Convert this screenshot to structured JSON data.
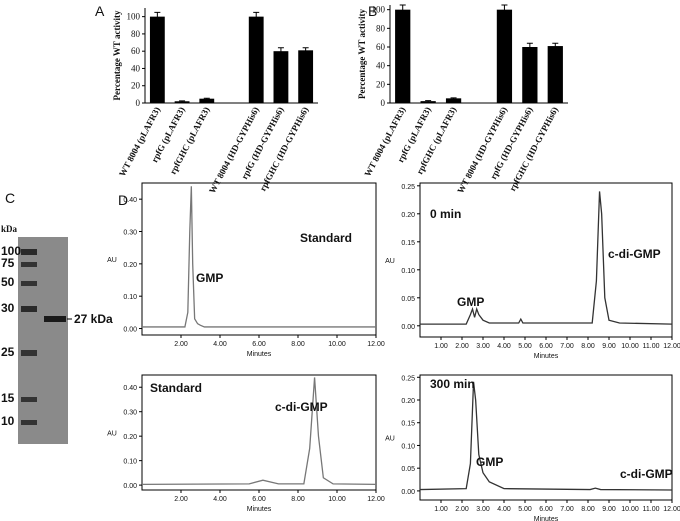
{
  "gel": {
    "panel_label": "C",
    "unit": "kDa",
    "markers": [
      100,
      75,
      50,
      30,
      25,
      15,
      10
    ],
    "band_label": "27 kDa"
  },
  "chart_data": [
    {
      "type": "bar",
      "panel_label": "A",
      "y_label": "Percentage WT activity",
      "categories": [
        "WT 8004 (pLAFR3)",
        "rpfG (pLAFR3)",
        "rpfGHC (pLAFR3)",
        null,
        "WT 8004 (HD-GYPHis6)",
        "rpfG (HD-GYPHis6)",
        "rpfGHC (HD-GYPHis6)"
      ],
      "values": [
        100,
        2,
        5,
        null,
        100,
        60,
        61
      ],
      "errors": [
        5,
        0.5,
        0.5,
        null,
        5,
        4,
        3
      ],
      "color": "#000000",
      "ylim": [
        0,
        110
      ],
      "yticks": [
        0,
        20,
        40,
        60,
        80,
        100
      ]
    },
    {
      "type": "bar",
      "panel_label": "B",
      "y_label": "Percentage WT activity",
      "categories": [
        "WT 8004 (pLAFR3)",
        "rpfG (pLAFR3)",
        "rpfGHC (pLAFR3)",
        null,
        "WT 8004 (HD-GYPHis6)",
        "rpfG (HD-GYPHis6)",
        "rpfGHC (HD-GYPHis6)"
      ],
      "values": [
        100,
        2,
        5,
        null,
        100,
        60,
        61
      ],
      "errors": [
        5,
        0.5,
        0.5,
        null,
        5,
        4,
        3
      ],
      "color": "#000000",
      "ylim": [
        0,
        105
      ],
      "yticks": [
        0,
        20,
        40,
        60,
        80,
        100
      ]
    },
    {
      "type": "line",
      "title": "Standard",
      "annotations": [
        "GMP"
      ],
      "x_label": "Minutes",
      "y_label": "AU",
      "color": "#777777",
      "x": [
        0,
        2.2,
        2.35,
        2.45,
        2.53,
        2.6,
        2.7,
        2.85,
        3.0,
        3.2,
        12
      ],
      "values": [
        0.005,
        0.005,
        0.05,
        0.3,
        0.44,
        0.2,
        0.03,
        0.015,
        0.01,
        0.005,
        0.005
      ],
      "xlim": [
        0,
        12
      ],
      "xticks": [
        {
          "value": 2,
          "label": "2.00"
        },
        {
          "value": 4,
          "label": "4.00"
        },
        {
          "value": 6,
          "label": "6.00"
        },
        {
          "value": 8,
          "label": "8.00"
        },
        {
          "value": 10,
          "label": "10.00"
        },
        {
          "value": 12,
          "label": "12.00"
        }
      ],
      "ylim": [
        -0.02,
        0.45
      ],
      "yticks": [
        {
          "value": 0,
          "label": "0.00"
        },
        {
          "value": 0.1,
          "label": "0.10"
        },
        {
          "value": 0.2,
          "label": "0.20"
        },
        {
          "value": 0.3,
          "label": "0.30"
        },
        {
          "value": 0.4,
          "label": "0.40"
        }
      ]
    },
    {
      "type": "line",
      "panel_label": "D",
      "title": "0 min",
      "annotations": [
        "GMP",
        "c-di-GMP"
      ],
      "x_label": "Minutes",
      "y_label": "AU",
      "color": "#333333",
      "x": [
        0,
        2.2,
        2.4,
        2.5,
        2.6,
        2.7,
        2.8,
        3.0,
        3.3,
        4.7,
        4.8,
        4.9,
        8.2,
        8.4,
        8.55,
        8.65,
        8.8,
        9.0,
        9.5,
        12
      ],
      "values": [
        0.003,
        0.003,
        0.02,
        0.03,
        0.015,
        0.03,
        0.02,
        0.01,
        0.005,
        0.005,
        0.012,
        0.005,
        0.005,
        0.08,
        0.24,
        0.2,
        0.05,
        0.01,
        0.005,
        0.003
      ],
      "xlim": [
        0,
        12
      ],
      "xticks": [
        {
          "value": 1,
          "label": "1.00"
        },
        {
          "value": 2,
          "label": "2.00"
        },
        {
          "value": 3,
          "label": "3.00"
        },
        {
          "value": 4,
          "label": "4.00"
        },
        {
          "value": 5,
          "label": "5.00"
        },
        {
          "value": 6,
          "label": "6.00"
        },
        {
          "value": 7,
          "label": "7.00"
        },
        {
          "value": 8,
          "label": "8.00"
        },
        {
          "value": 9,
          "label": "9.00"
        },
        {
          "value": 10,
          "label": "10.00"
        },
        {
          "value": 11,
          "label": "11.00"
        },
        {
          "value": 12,
          "label": "12.00"
        }
      ],
      "ylim": [
        -0.02,
        0.255
      ],
      "yticks": [
        {
          "value": 0,
          "label": "0.00"
        },
        {
          "value": 0.05,
          "label": "0.05"
        },
        {
          "value": 0.1,
          "label": "0.10"
        },
        {
          "value": 0.15,
          "label": "0.15"
        },
        {
          "value": 0.2,
          "label": "0.20"
        },
        {
          "value": 0.25,
          "label": "0.25"
        }
      ]
    },
    {
      "type": "line",
      "title": "Standard",
      "annotations": [
        "c-di-GMP"
      ],
      "x_label": "Minutes",
      "y_label": "AU",
      "color": "#777777",
      "x": [
        0,
        5.5,
        6.2,
        7,
        8.3,
        8.6,
        8.85,
        9.05,
        9.3,
        9.8,
        12
      ],
      "values": [
        0.003,
        0.005,
        0.02,
        0.005,
        0.005,
        0.15,
        0.44,
        0.2,
        0.03,
        0.005,
        0.003
      ],
      "xlim": [
        0,
        12
      ],
      "xticks": [
        {
          "value": 2,
          "label": "2.00"
        },
        {
          "value": 4,
          "label": "4.00"
        },
        {
          "value": 6,
          "label": "6.00"
        },
        {
          "value": 8,
          "label": "8.00"
        },
        {
          "value": 10,
          "label": "10.00"
        },
        {
          "value": 12,
          "label": "12.00"
        }
      ],
      "ylim": [
        -0.02,
        0.45
      ],
      "yticks": [
        {
          "value": 0,
          "label": "0.00"
        },
        {
          "value": 0.1,
          "label": "0.10"
        },
        {
          "value": 0.2,
          "label": "0.20"
        },
        {
          "value": 0.3,
          "label": "0.30"
        },
        {
          "value": 0.4,
          "label": "0.40"
        }
      ]
    },
    {
      "type": "line",
      "title": "300 min",
      "annotations": [
        "GMP",
        "c-di-GMP"
      ],
      "x_label": "Minutes",
      "y_label": "AU",
      "color": "#333333",
      "x": [
        0,
        2.2,
        2.4,
        2.55,
        2.65,
        2.8,
        3.0,
        3.3,
        4,
        8.1,
        8.35,
        8.6,
        12
      ],
      "values": [
        0.003,
        0.005,
        0.06,
        0.24,
        0.2,
        0.08,
        0.04,
        0.02,
        0.005,
        0.003,
        0.006,
        0.003,
        0.002
      ],
      "xlim": [
        0,
        12
      ],
      "xticks": [
        {
          "value": 1,
          "label": "1.00"
        },
        {
          "value": 2,
          "label": "2.00"
        },
        {
          "value": 3,
          "label": "3.00"
        },
        {
          "value": 4,
          "label": "4.00"
        },
        {
          "value": 5,
          "label": "5.00"
        },
        {
          "value": 6,
          "label": "6.00"
        },
        {
          "value": 7,
          "label": "7.00"
        },
        {
          "value": 8,
          "label": "8.00"
        },
        {
          "value": 9,
          "label": "9.00"
        },
        {
          "value": 10,
          "label": "10.00"
        },
        {
          "value": 11,
          "label": "11.00"
        },
        {
          "value": 12,
          "label": "12.00"
        }
      ],
      "ylim": [
        -0.02,
        0.255
      ],
      "yticks": [
        {
          "value": 0,
          "label": "0.00"
        },
        {
          "value": 0.05,
          "label": "0.05"
        },
        {
          "value": 0.1,
          "label": "0.10"
        },
        {
          "value": 0.15,
          "label": "0.15"
        },
        {
          "value": 0.2,
          "label": "0.20"
        },
        {
          "value": 0.25,
          "label": "0.25"
        }
      ]
    }
  ]
}
